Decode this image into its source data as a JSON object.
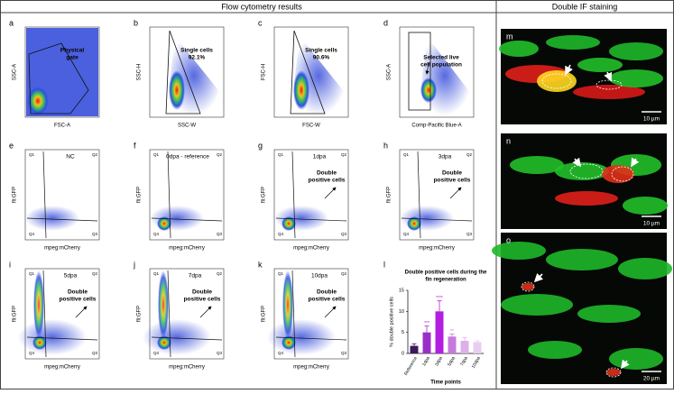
{
  "header": {
    "left_title": "Flow cytometry results",
    "right_title": "Double IF staining"
  },
  "quadrants": [
    "Q1",
    "Q2",
    "Q3",
    "Q4"
  ],
  "panels": [
    {
      "letter": "a",
      "y_label": "SSC-A",
      "x_label": "FSC-A",
      "notes": [
        "Physical",
        "gate"
      ]
    },
    {
      "letter": "b",
      "y_label": "SSC-H",
      "x_label": "SSC-W",
      "notes": [
        "Single cells",
        "92.1%"
      ]
    },
    {
      "letter": "c",
      "y_label": "FSC-H",
      "x_label": "FSC-W",
      "notes": [
        "Single cells",
        "90.6%"
      ]
    },
    {
      "letter": "d",
      "y_label": "SSC-A",
      "x_label": "Comp-Pacific Blue-A",
      "notes": [
        "Selected live",
        "cell population"
      ]
    },
    {
      "letter": "e",
      "y_label": "fli:GFP",
      "x_label": "mpeg:mCherry",
      "notes": [
        "NC"
      ]
    },
    {
      "letter": "f",
      "y_label": "fli:GFP",
      "x_label": "mpeg:mCherry",
      "notes": [
        "0dpa - reference"
      ]
    },
    {
      "letter": "g",
      "y_label": "fli:GFP",
      "x_label": "mpeg:mCherry",
      "notes": [
        "1dpa",
        "Double",
        "positive cells"
      ]
    },
    {
      "letter": "h",
      "y_label": "fli:GFP",
      "x_label": "mpeg:mCherry",
      "notes": [
        "3dpa",
        "Double",
        "positive cells"
      ]
    },
    {
      "letter": "i",
      "y_label": "fli:GFP",
      "x_label": "mpeg:mCherry",
      "notes": [
        "5dpa",
        "Double",
        "positive cells"
      ]
    },
    {
      "letter": "j",
      "y_label": "fli:GFP",
      "x_label": "mpeg:mCherry",
      "notes": [
        "7dpa",
        "Double",
        "positive cells"
      ]
    },
    {
      "letter": "k",
      "y_label": "fli:GFP",
      "x_label": "mpeg:mCherry",
      "notes": [
        "10dpa",
        "Double",
        "positive cells"
      ]
    }
  ],
  "chart_data": {
    "type": "bar",
    "letter": "l",
    "title": [
      "Double positive cells during the",
      "fin regeneration"
    ],
    "y_label": "% double positive cells",
    "x_label": "Time points",
    "categories": [
      "Reference",
      "1dpa",
      "3dpa",
      "5dpa",
      "7dpa",
      "10dpa"
    ],
    "values": [
      1.8,
      5,
      10,
      4,
      3,
      2.7
    ],
    "errors": [
      0.5,
      1.5,
      2.5,
      0.6,
      0.8,
      0.3
    ],
    "significance": [
      null,
      "***",
      "****",
      "**",
      null,
      null
    ],
    "colors": [
      "#3b1a5a",
      "#9a2fc8",
      "#b21fe0",
      "#c67ade",
      "#dcb0ea",
      "#e9cdf1"
    ],
    "ylim": [
      0,
      15
    ],
    "yticks": [
      0,
      5,
      10,
      15
    ]
  },
  "images": [
    {
      "letter": "m",
      "scale": "10 µm"
    },
    {
      "letter": "n",
      "scale": "10 µm"
    },
    {
      "letter": "o",
      "scale": "20 µm"
    }
  ]
}
